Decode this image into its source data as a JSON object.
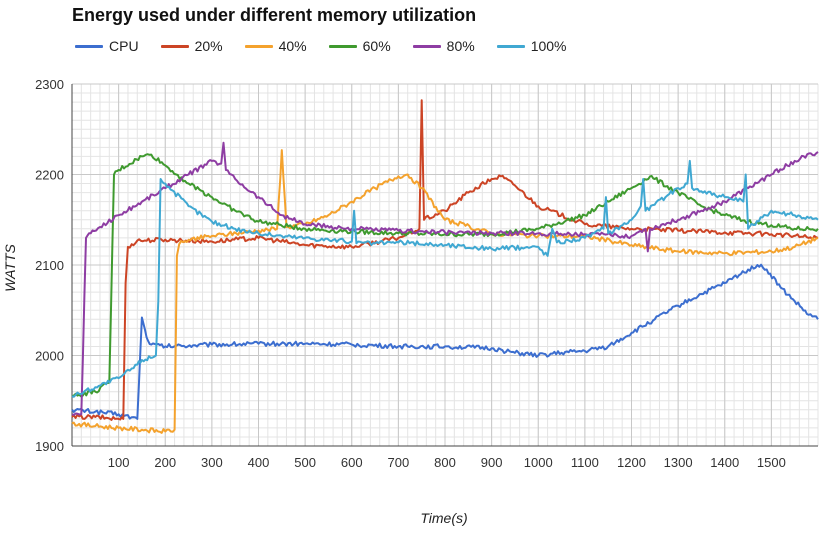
{
  "chart_data": {
    "type": "line",
    "title": "Energy used under different memory utilization",
    "xlabel": "Time(s)",
    "ylabel": "WATTS",
    "xlim": [
      0,
      1600
    ],
    "ylim": [
      1900,
      2300
    ],
    "x_ticks": [
      100,
      200,
      300,
      400,
      500,
      600,
      700,
      800,
      900,
      1000,
      1100,
      1200,
      1300,
      1400,
      1500
    ],
    "y_ticks": [
      1900,
      2000,
      2100,
      2200,
      2300
    ],
    "grid": true,
    "legend_position": "top-left",
    "series": [
      {
        "name": "CPU",
        "color": "#3c6ecf",
        "x": [
          0,
          50,
          100,
          140,
          150,
          160,
          170,
          200,
          300,
          400,
          500,
          600,
          700,
          800,
          900,
          950,
          1000,
          1050,
          1100,
          1150,
          1200,
          1250,
          1300,
          1350,
          1400,
          1450,
          1470,
          1490,
          1520,
          1550,
          1580,
          1600
        ],
        "y": [
          1940,
          1938,
          1935,
          1930,
          2042,
          2020,
          2012,
          2010,
          2012,
          2013,
          2013,
          2012,
          2010,
          2010,
          2008,
          2003,
          2000,
          2003,
          2005,
          2010,
          2025,
          2040,
          2055,
          2068,
          2080,
          2095,
          2100,
          2095,
          2075,
          2060,
          2045,
          2040
        ]
      },
      {
        "name": "20%",
        "color": "#cc4425",
        "x": [
          0,
          50,
          100,
          110,
          115,
          120,
          140,
          200,
          300,
          400,
          500,
          600,
          700,
          745,
          750,
          755,
          800,
          850,
          900,
          920,
          950,
          1000,
          1100,
          1200,
          1300,
          1400,
          1500,
          1600
        ],
        "y": [
          1932,
          1932,
          1930,
          1930,
          2080,
          2120,
          2127,
          2128,
          2126,
          2130,
          2122,
          2120,
          2130,
          2140,
          2282,
          2150,
          2160,
          2180,
          2195,
          2198,
          2188,
          2165,
          2145,
          2140,
          2138,
          2136,
          2134,
          2130
        ]
      },
      {
        "name": "40%",
        "color": "#f4a22d",
        "x": [
          0,
          50,
          100,
          150,
          200,
          220,
          225,
          230,
          250,
          300,
          400,
          440,
          450,
          460,
          500,
          550,
          600,
          650,
          700,
          720,
          750,
          800,
          900,
          1000,
          1100,
          1200,
          1300,
          1400,
          1500,
          1550,
          1600
        ],
        "y": [
          1925,
          1922,
          1920,
          1918,
          1916,
          1918,
          2110,
          2123,
          2128,
          2132,
          2138,
          2140,
          2227,
          2142,
          2145,
          2155,
          2170,
          2185,
          2198,
          2200,
          2185,
          2150,
          2135,
          2132,
          2132,
          2122,
          2115,
          2113,
          2115,
          2120,
          2130
        ]
      },
      {
        "name": "60%",
        "color": "#3f9a2f",
        "x": [
          0,
          50,
          80,
          90,
          100,
          150,
          170,
          200,
          250,
          300,
          350,
          400,
          500,
          600,
          700,
          800,
          900,
          1000,
          1100,
          1150,
          1200,
          1240,
          1250,
          1300,
          1350,
          1400,
          1450,
          1500,
          1550,
          1600
        ],
        "y": [
          1955,
          1960,
          1970,
          2200,
          2205,
          2220,
          2222,
          2210,
          2190,
          2175,
          2160,
          2148,
          2140,
          2137,
          2135,
          2134,
          2134,
          2140,
          2155,
          2170,
          2185,
          2198,
          2195,
          2180,
          2165,
          2155,
          2148,
          2144,
          2140,
          2140
        ]
      },
      {
        "name": "80%",
        "color": "#8e3da3",
        "x": [
          0,
          20,
          30,
          40,
          60,
          100,
          150,
          200,
          250,
          300,
          320,
          325,
          330,
          350,
          400,
          450,
          500,
          600,
          700,
          800,
          900,
          1000,
          1100,
          1200,
          1230,
          1235,
          1240,
          1300,
          1350,
          1400,
          1450,
          1500,
          1550,
          1600
        ],
        "y": [
          1935,
          1935,
          2130,
          2135,
          2142,
          2155,
          2170,
          2185,
          2200,
          2215,
          2212,
          2235,
          2205,
          2195,
          2175,
          2155,
          2145,
          2140,
          2138,
          2136,
          2135,
          2135,
          2134,
          2132,
          2140,
          2115,
          2140,
          2150,
          2160,
          2170,
          2185,
          2200,
          2215,
          2225
        ]
      },
      {
        "name": "100%",
        "color": "#40a8d2",
        "x": [
          0,
          50,
          100,
          140,
          150,
          180,
          185,
          190,
          200,
          250,
          300,
          350,
          400,
          450,
          500,
          600,
          605,
          610,
          650,
          700,
          800,
          900,
          1000,
          1020,
          1030,
          1040,
          1100,
          1140,
          1145,
          1150,
          1200,
          1220,
          1225,
          1230,
          1300,
          1320,
          1325,
          1330,
          1400,
          1440,
          1445,
          1450,
          1500,
          1550,
          1600
        ],
        "y": [
          1955,
          1965,
          1975,
          1990,
          1995,
          2000,
          2060,
          2195,
          2190,
          2165,
          2148,
          2140,
          2135,
          2132,
          2130,
          2126,
          2160,
          2124,
          2124,
          2125,
          2122,
          2118,
          2120,
          2110,
          2140,
          2125,
          2130,
          2140,
          2175,
          2135,
          2150,
          2165,
          2195,
          2160,
          2185,
          2190,
          2215,
          2185,
          2175,
          2170,
          2200,
          2140,
          2160,
          2155,
          2150
        ]
      }
    ]
  }
}
